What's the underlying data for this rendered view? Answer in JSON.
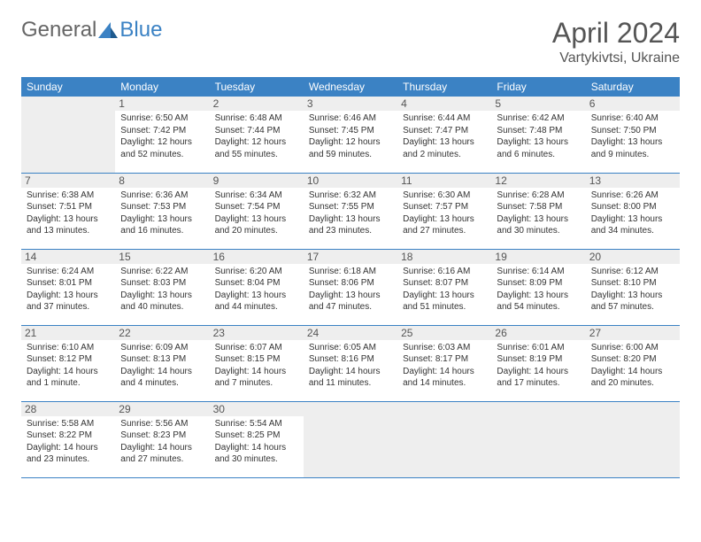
{
  "header": {
    "logo_general": "General",
    "logo_blue": "Blue",
    "month_title": "April 2024",
    "location": "Vartykivtsi, Ukraine"
  },
  "colors": {
    "header_bg": "#3b82c4",
    "header_text": "#ffffff",
    "daynum_bg": "#eeeeee",
    "border": "#3b82c4",
    "empty_bg": "#eeeeee",
    "body_text": "#333333"
  },
  "weekdays": [
    "Sunday",
    "Monday",
    "Tuesday",
    "Wednesday",
    "Thursday",
    "Friday",
    "Saturday"
  ],
  "weeks": [
    [
      {
        "empty": true
      },
      {
        "day": "1",
        "sunrise": "Sunrise: 6:50 AM",
        "sunset": "Sunset: 7:42 PM",
        "daylight": "Daylight: 12 hours and 52 minutes."
      },
      {
        "day": "2",
        "sunrise": "Sunrise: 6:48 AM",
        "sunset": "Sunset: 7:44 PM",
        "daylight": "Daylight: 12 hours and 55 minutes."
      },
      {
        "day": "3",
        "sunrise": "Sunrise: 6:46 AM",
        "sunset": "Sunset: 7:45 PM",
        "daylight": "Daylight: 12 hours and 59 minutes."
      },
      {
        "day": "4",
        "sunrise": "Sunrise: 6:44 AM",
        "sunset": "Sunset: 7:47 PM",
        "daylight": "Daylight: 13 hours and 2 minutes."
      },
      {
        "day": "5",
        "sunrise": "Sunrise: 6:42 AM",
        "sunset": "Sunset: 7:48 PM",
        "daylight": "Daylight: 13 hours and 6 minutes."
      },
      {
        "day": "6",
        "sunrise": "Sunrise: 6:40 AM",
        "sunset": "Sunset: 7:50 PM",
        "daylight": "Daylight: 13 hours and 9 minutes."
      }
    ],
    [
      {
        "day": "7",
        "sunrise": "Sunrise: 6:38 AM",
        "sunset": "Sunset: 7:51 PM",
        "daylight": "Daylight: 13 hours and 13 minutes."
      },
      {
        "day": "8",
        "sunrise": "Sunrise: 6:36 AM",
        "sunset": "Sunset: 7:53 PM",
        "daylight": "Daylight: 13 hours and 16 minutes."
      },
      {
        "day": "9",
        "sunrise": "Sunrise: 6:34 AM",
        "sunset": "Sunset: 7:54 PM",
        "daylight": "Daylight: 13 hours and 20 minutes."
      },
      {
        "day": "10",
        "sunrise": "Sunrise: 6:32 AM",
        "sunset": "Sunset: 7:55 PM",
        "daylight": "Daylight: 13 hours and 23 minutes."
      },
      {
        "day": "11",
        "sunrise": "Sunrise: 6:30 AM",
        "sunset": "Sunset: 7:57 PM",
        "daylight": "Daylight: 13 hours and 27 minutes."
      },
      {
        "day": "12",
        "sunrise": "Sunrise: 6:28 AM",
        "sunset": "Sunset: 7:58 PM",
        "daylight": "Daylight: 13 hours and 30 minutes."
      },
      {
        "day": "13",
        "sunrise": "Sunrise: 6:26 AM",
        "sunset": "Sunset: 8:00 PM",
        "daylight": "Daylight: 13 hours and 34 minutes."
      }
    ],
    [
      {
        "day": "14",
        "sunrise": "Sunrise: 6:24 AM",
        "sunset": "Sunset: 8:01 PM",
        "daylight": "Daylight: 13 hours and 37 minutes."
      },
      {
        "day": "15",
        "sunrise": "Sunrise: 6:22 AM",
        "sunset": "Sunset: 8:03 PM",
        "daylight": "Daylight: 13 hours and 40 minutes."
      },
      {
        "day": "16",
        "sunrise": "Sunrise: 6:20 AM",
        "sunset": "Sunset: 8:04 PM",
        "daylight": "Daylight: 13 hours and 44 minutes."
      },
      {
        "day": "17",
        "sunrise": "Sunrise: 6:18 AM",
        "sunset": "Sunset: 8:06 PM",
        "daylight": "Daylight: 13 hours and 47 minutes."
      },
      {
        "day": "18",
        "sunrise": "Sunrise: 6:16 AM",
        "sunset": "Sunset: 8:07 PM",
        "daylight": "Daylight: 13 hours and 51 minutes."
      },
      {
        "day": "19",
        "sunrise": "Sunrise: 6:14 AM",
        "sunset": "Sunset: 8:09 PM",
        "daylight": "Daylight: 13 hours and 54 minutes."
      },
      {
        "day": "20",
        "sunrise": "Sunrise: 6:12 AM",
        "sunset": "Sunset: 8:10 PM",
        "daylight": "Daylight: 13 hours and 57 minutes."
      }
    ],
    [
      {
        "day": "21",
        "sunrise": "Sunrise: 6:10 AM",
        "sunset": "Sunset: 8:12 PM",
        "daylight": "Daylight: 14 hours and 1 minute."
      },
      {
        "day": "22",
        "sunrise": "Sunrise: 6:09 AM",
        "sunset": "Sunset: 8:13 PM",
        "daylight": "Daylight: 14 hours and 4 minutes."
      },
      {
        "day": "23",
        "sunrise": "Sunrise: 6:07 AM",
        "sunset": "Sunset: 8:15 PM",
        "daylight": "Daylight: 14 hours and 7 minutes."
      },
      {
        "day": "24",
        "sunrise": "Sunrise: 6:05 AM",
        "sunset": "Sunset: 8:16 PM",
        "daylight": "Daylight: 14 hours and 11 minutes."
      },
      {
        "day": "25",
        "sunrise": "Sunrise: 6:03 AM",
        "sunset": "Sunset: 8:17 PM",
        "daylight": "Daylight: 14 hours and 14 minutes."
      },
      {
        "day": "26",
        "sunrise": "Sunrise: 6:01 AM",
        "sunset": "Sunset: 8:19 PM",
        "daylight": "Daylight: 14 hours and 17 minutes."
      },
      {
        "day": "27",
        "sunrise": "Sunrise: 6:00 AM",
        "sunset": "Sunset: 8:20 PM",
        "daylight": "Daylight: 14 hours and 20 minutes."
      }
    ],
    [
      {
        "day": "28",
        "sunrise": "Sunrise: 5:58 AM",
        "sunset": "Sunset: 8:22 PM",
        "daylight": "Daylight: 14 hours and 23 minutes."
      },
      {
        "day": "29",
        "sunrise": "Sunrise: 5:56 AM",
        "sunset": "Sunset: 8:23 PM",
        "daylight": "Daylight: 14 hours and 27 minutes."
      },
      {
        "day": "30",
        "sunrise": "Sunrise: 5:54 AM",
        "sunset": "Sunset: 8:25 PM",
        "daylight": "Daylight: 14 hours and 30 minutes."
      },
      {
        "empty": true
      },
      {
        "empty": true
      },
      {
        "empty": true
      },
      {
        "empty": true
      }
    ]
  ]
}
